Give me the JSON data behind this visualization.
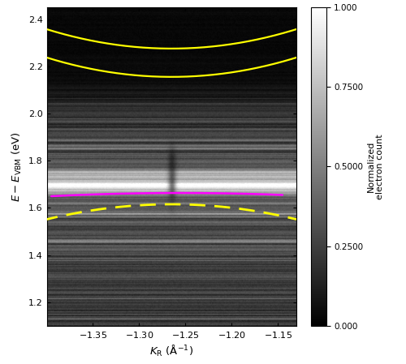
{
  "xlim": [
    -1.4,
    -1.13
  ],
  "ylim": [
    1.1,
    2.45
  ],
  "xlabel": "$K_{\\mathrm{R}}$ (Å$^{-1}$)",
  "ylabel": "$E - E_{\\mathrm{VBM}}$ (eV)",
  "colorbar_label": "Normalized\nelectron count",
  "colorbar_ticks": [
    0.0,
    0.25,
    0.5,
    0.75,
    1.0
  ],
  "colorbar_ticklabels": [
    "0.000",
    "0.2500",
    "0.5000",
    "0.7500",
    "1.000"
  ],
  "yellow_curve1_k0": -1.265,
  "yellow_curve1_e0": 2.155,
  "yellow_curve1_curv": 4.5,
  "yellow_curve2_k0": -1.265,
  "yellow_curve2_e0": 2.275,
  "yellow_curve2_curv": 4.5,
  "magenta_k0": -1.255,
  "magenta_e0": 1.663,
  "magenta_curv": -0.7,
  "magenta_kmin": -1.395,
  "magenta_kmax": -1.145,
  "yellow_dash_k0": -1.265,
  "yellow_dash_e0": 1.615,
  "yellow_dash_curv": -3.5,
  "yellow_dash_kmin": -1.405,
  "yellow_dash_kmax": -1.13,
  "bright_band_y": 1.695,
  "bright_band_amp": 0.85,
  "bright_band_sig": 0.016,
  "bright_band2_y": 1.735,
  "bright_band2_amp": 0.45,
  "bright_band2_sig": 0.012,
  "dark_transition_y": 2.05,
  "seed": 42
}
